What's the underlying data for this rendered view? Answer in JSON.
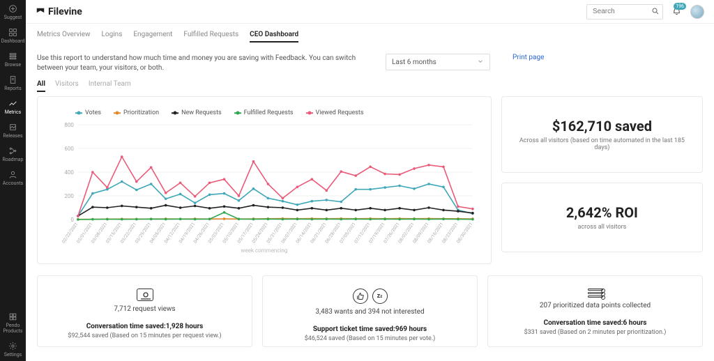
{
  "brand": "Filevine",
  "search": {
    "placeholder": "Search"
  },
  "notification_count": "196",
  "sidebar": {
    "items": [
      {
        "label": "Suggest"
      },
      {
        "label": "Dashboard"
      },
      {
        "label": "Browse"
      },
      {
        "label": "Reports"
      },
      {
        "label": "Metrics"
      },
      {
        "label": "Releases"
      },
      {
        "label": "Roadmap"
      },
      {
        "label": "Accounts"
      }
    ],
    "bottom": [
      {
        "label": "Pendo Products"
      },
      {
        "label": "Settings"
      }
    ]
  },
  "tabs": [
    "Metrics Overview",
    "Logins",
    "Engagement",
    "Fulfilled Requests",
    "CEO Dashboard"
  ],
  "active_tab": "CEO Dashboard",
  "intro": "Use this report to understand how much time and money you are saving with Feedback. You can switch between your team, your visitors, or both.",
  "period": {
    "label": "Last 6 months"
  },
  "print": "Print page",
  "subtabs": [
    "All",
    "Visitors",
    "Internal Team"
  ],
  "active_subtab": "All",
  "chart": {
    "background": "#ffffff",
    "grid_color": "#f2f2f2",
    "axis_color": "#dddddd",
    "label_color": "#aaaaaa",
    "ymin": 0,
    "ymax": 800,
    "ytick_step": 200,
    "series": [
      {
        "name": "Votes",
        "color": "#3fa7b8",
        "data": [
          30,
          220,
          255,
          320,
          250,
          300,
          175,
          215,
          140,
          210,
          220,
          160,
          260,
          180,
          155,
          125,
          155,
          165,
          150,
          255,
          255,
          270,
          285,
          260,
          300,
          275,
          80,
          50
        ]
      },
      {
        "name": "Prioritization",
        "color": "#e08a2c",
        "data": [
          2,
          3,
          4,
          5,
          4,
          5,
          6,
          5,
          6,
          5,
          6,
          5,
          6,
          7,
          8,
          7,
          8,
          7,
          8,
          7,
          8,
          7,
          8,
          7,
          8,
          7,
          7,
          6
        ]
      },
      {
        "name": "New Requests",
        "color": "#222222",
        "data": [
          30,
          105,
          100,
          115,
          105,
          95,
          120,
          100,
          115,
          95,
          110,
          95,
          120,
          105,
          100,
          80,
          95,
          80,
          95,
          80,
          95,
          80,
          95,
          80,
          100,
          80,
          70,
          55
        ]
      },
      {
        "name": "Fulfilled Requests",
        "color": "#2fa84f",
        "data": [
          0,
          2,
          3,
          2,
          3,
          4,
          3,
          4,
          3,
          4,
          60,
          4,
          3,
          4,
          3,
          4,
          3,
          4,
          3,
          4,
          3,
          4,
          3,
          4,
          3,
          4,
          3,
          2
        ]
      },
      {
        "name": "Viewed Requests",
        "color": "#ea5b7a",
        "data": [
          30,
          400,
          270,
          530,
          320,
          440,
          225,
          310,
          195,
          310,
          340,
          200,
          490,
          300,
          180,
          275,
          340,
          245,
          405,
          370,
          445,
          385,
          380,
          430,
          460,
          445,
          110,
          90
        ]
      }
    ],
    "x_labels": [
      "02/22/2021",
      "03/01/2021",
      "03/08/2021",
      "03/15/2021",
      "03/22/2021",
      "03/29/2021",
      "04/05/2021",
      "04/12/2021",
      "04/19/2021",
      "04/26/2021",
      "05/03/2021",
      "05/10/2021",
      "05/17/2021",
      "05/24/2021",
      "05/31/2021",
      "06/07/2021",
      "06/14/2021",
      "06/21/2021",
      "06/28/2021",
      "07/05/2021",
      "07/12/2021",
      "07/19/2021",
      "07/26/2021",
      "08/02/2021",
      "08/09/2021",
      "08/16/2021",
      "08/23/2021",
      "08/30/2021"
    ],
    "x_caption": "week commencing"
  },
  "saved_card": {
    "main": "$162,710 saved",
    "sub": "Across all visitors (based on time automated in the last 185 days)"
  },
  "roi_card": {
    "main": "2,642% ROI",
    "sub": "across all visitors"
  },
  "bottom_stats": [
    {
      "icon": "views",
      "line1": "7,712 request views",
      "line2": "Conversation time saved:1,928 hours",
      "line3": "$92,544 saved (Based on 15 minutes per request view.)"
    },
    {
      "icon": "wants",
      "line1": "3,483 wants and 394 not interested",
      "line2": "Support ticket time saved:969 hours",
      "line3": "$46,524 saved (Based on 15 minutes per vote.)"
    },
    {
      "icon": "prioritized",
      "line1": "207 prioritized data points collected",
      "line2": "Conversation time saved:6 hours",
      "line3": "$331 saved (Based on 2 minutes per prioritization.)"
    }
  ]
}
